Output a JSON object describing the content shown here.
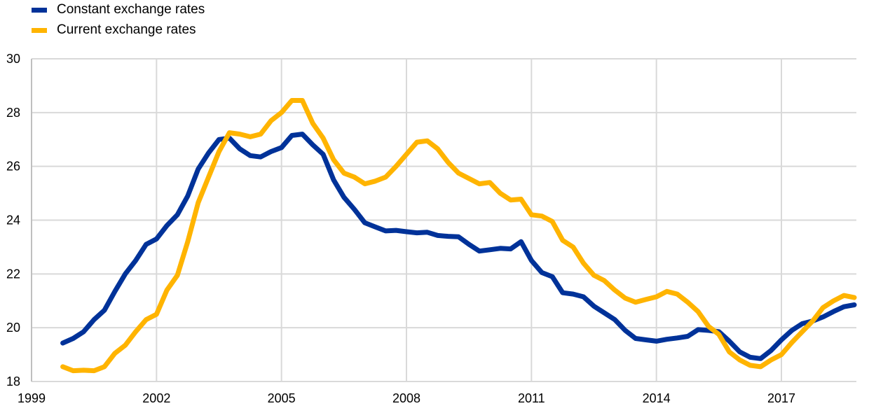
{
  "chart_data": {
    "type": "line",
    "title": "",
    "xlabel": "",
    "ylabel": "",
    "xlim": [
      1999,
      2018.8
    ],
    "ylim": [
      18,
      30
    ],
    "x_ticks": [
      "1999",
      "2002",
      "2005",
      "2008",
      "2011",
      "2014",
      "2017"
    ],
    "y_ticks": [
      "18",
      "20",
      "22",
      "24",
      "26",
      "28",
      "30"
    ],
    "grid": true,
    "legend_position": "top-left",
    "x_start": 1999.75,
    "x_step": 0.25,
    "series": [
      {
        "name": "Constant exchange rates",
        "color": "#003299",
        "values": [
          19.43,
          19.6,
          19.85,
          20.3,
          20.65,
          21.35,
          22.0,
          22.5,
          23.1,
          23.3,
          23.8,
          24.2,
          24.9,
          25.9,
          26.5,
          27.0,
          27.05,
          26.65,
          26.4,
          26.35,
          26.55,
          26.7,
          27.15,
          27.2,
          26.8,
          26.45,
          25.5,
          24.85,
          24.4,
          23.9,
          23.75,
          23.6,
          23.62,
          23.57,
          23.53,
          23.55,
          23.43,
          23.4,
          23.38,
          23.1,
          22.85,
          22.9,
          22.95,
          22.93,
          23.2,
          22.5,
          22.05,
          21.9,
          21.3,
          21.25,
          21.15,
          20.8,
          20.55,
          20.3,
          19.9,
          19.6,
          19.55,
          19.5,
          19.57,
          19.62,
          19.68,
          19.93,
          19.9,
          19.85,
          19.5,
          19.1,
          18.9,
          18.85,
          19.15,
          19.55,
          19.9,
          20.15,
          20.25,
          20.4,
          20.6,
          20.78,
          20.85
        ]
      },
      {
        "name": "Current exchange rates",
        "color": "#FFB400",
        "values": [
          18.55,
          18.4,
          18.42,
          18.4,
          18.55,
          19.05,
          19.35,
          19.85,
          20.3,
          20.5,
          21.4,
          21.95,
          23.2,
          24.65,
          25.6,
          26.55,
          27.25,
          27.2,
          27.1,
          27.2,
          27.7,
          28.0,
          28.45,
          28.45,
          27.6,
          27.05,
          26.25,
          25.75,
          25.6,
          25.35,
          25.45,
          25.6,
          26.0,
          26.45,
          26.9,
          26.95,
          26.65,
          26.15,
          25.75,
          25.55,
          25.35,
          25.4,
          25.0,
          24.75,
          24.78,
          24.2,
          24.15,
          23.95,
          23.25,
          23.0,
          22.4,
          21.95,
          21.75,
          21.4,
          21.1,
          20.95,
          21.05,
          21.15,
          21.35,
          21.25,
          20.95,
          20.6,
          20.05,
          19.75,
          19.1,
          18.8,
          18.6,
          18.55,
          18.8,
          19.0,
          19.45,
          19.85,
          20.25,
          20.75,
          21.0,
          21.2,
          21.12
        ]
      }
    ]
  }
}
